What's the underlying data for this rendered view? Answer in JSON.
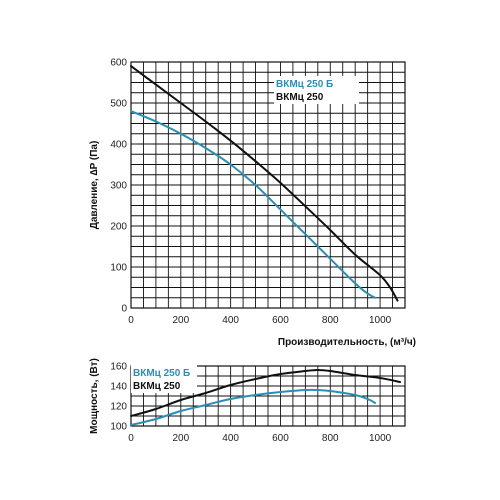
{
  "chart_data": [
    {
      "type": "line",
      "xlabel": "Производительность, (м³/ч)",
      "ylabel": "Давление, ∆P (Па)",
      "xlim": [
        0,
        1100
      ],
      "ylim": [
        0,
        600
      ],
      "x_ticks": [
        "0",
        "200",
        "400",
        "600",
        "800",
        "1000"
      ],
      "y_ticks": [
        "0",
        "100",
        "200",
        "300",
        "400",
        "500",
        "600"
      ],
      "grid": true,
      "legend_position": "top-right",
      "series": [
        {
          "name": "ВКМц 250 Б",
          "color": "#2a8fb3",
          "x": [
            0,
            100,
            200,
            300,
            400,
            500,
            600,
            700,
            800,
            900,
            950,
            980
          ],
          "y": [
            480,
            455,
            425,
            390,
            350,
            300,
            240,
            180,
            120,
            60,
            35,
            25
          ]
        },
        {
          "name": "ВКМц 250",
          "color": "#111111",
          "x": [
            0,
            100,
            200,
            300,
            400,
            500,
            600,
            700,
            800,
            900,
            1000,
            1040,
            1070
          ],
          "y": [
            590,
            545,
            500,
            455,
            408,
            358,
            305,
            248,
            190,
            130,
            80,
            50,
            18
          ]
        }
      ]
    },
    {
      "type": "line",
      "xlabel": "",
      "ylabel": "Мощность, (Вт)",
      "xlim": [
        0,
        1100
      ],
      "ylim": [
        100,
        160
      ],
      "x_ticks": [
        "0",
        "200",
        "400",
        "600",
        "800",
        "1000"
      ],
      "y_ticks": [
        "100",
        "120",
        "140",
        "160"
      ],
      "grid": true,
      "legend_position": "top-left",
      "series": [
        {
          "name": "ВКМц 250 Б",
          "color": "#2a8fb3",
          "x": [
            0,
            100,
            200,
            300,
            400,
            500,
            600,
            700,
            750,
            800,
            900,
            950,
            980
          ],
          "y": [
            101,
            107,
            115,
            121,
            127,
            131,
            134,
            136,
            136,
            135,
            131,
            127,
            123
          ]
        },
        {
          "name": "ВКМц 250",
          "color": "#111111",
          "x": [
            0,
            100,
            200,
            300,
            400,
            500,
            600,
            700,
            750,
            800,
            900,
            1000,
            1080
          ],
          "y": [
            110,
            117,
            126,
            133,
            141,
            147,
            152,
            155,
            156,
            155,
            151,
            148,
            144
          ]
        }
      ]
    }
  ]
}
